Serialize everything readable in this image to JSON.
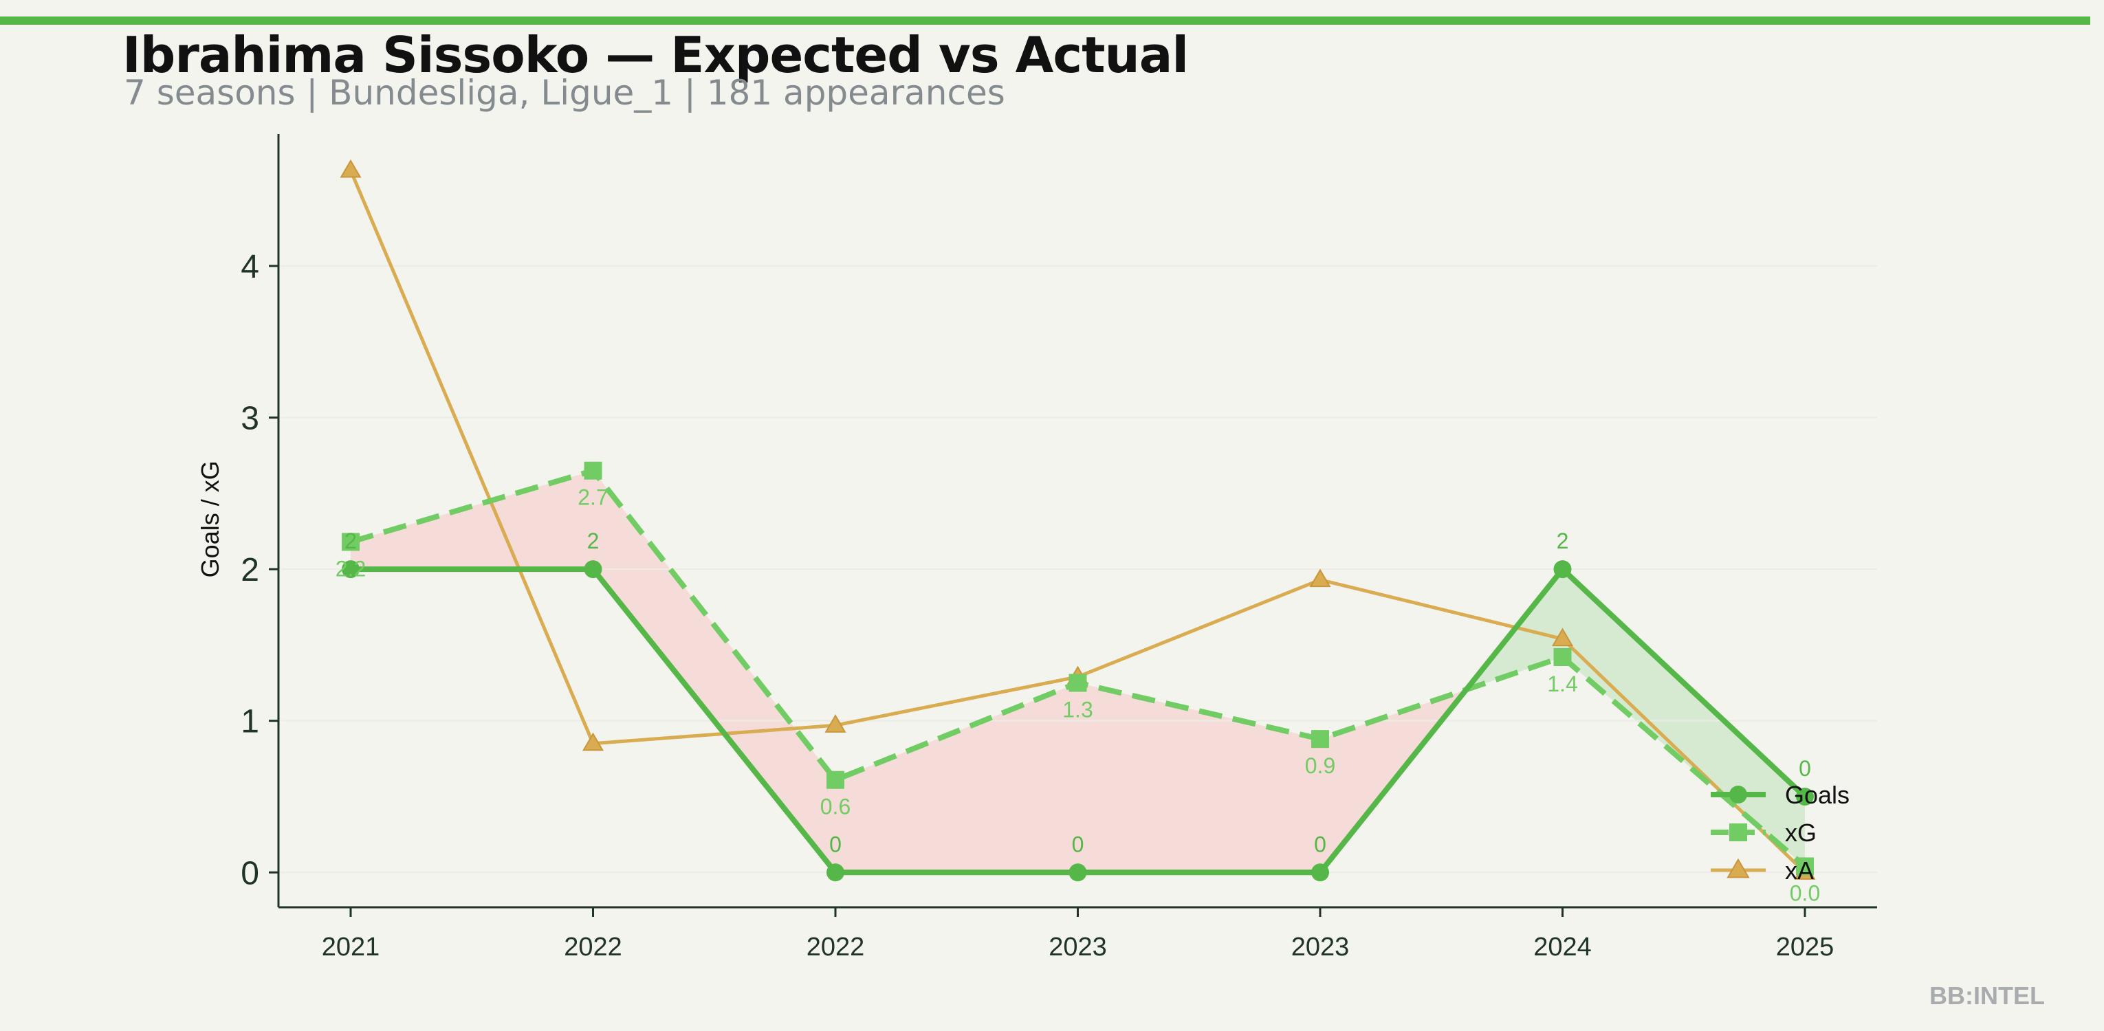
{
  "header": {
    "title": "Ibrahima Sissoko — Expected vs Actual",
    "subtitle": "7 seasons | Bundesliga, Ligue_1 | 181 appearances"
  },
  "watermark": "BB:INTEL",
  "colors": {
    "background": "#f4f4ef",
    "accent": "#55b748",
    "goals": "#55b748",
    "xg": "#72cc64",
    "xa": "#d9ac52",
    "underperform_fill": "#f5d9d5",
    "overperform_fill": "#d3e9cd",
    "axis": "#1f3326"
  },
  "chart_data": {
    "type": "line",
    "title": "Ibrahima Sissoko — Expected vs Actual",
    "subtitle": "7 seasons | Bundesliga, Ligue_1 | 181 appearances",
    "xlabel": "",
    "ylabel": "Goals / xG",
    "categories": [
      "2021",
      "2022",
      "2022",
      "2023",
      "2023",
      "2024",
      "2025"
    ],
    "ylim": [
      -0.23,
      4.87
    ],
    "yticks": [
      0,
      1,
      2,
      3,
      4
    ],
    "grid": false,
    "legend_position": "bottom-right",
    "series": [
      {
        "name": "Goals",
        "key": "goals",
        "marker": "circle",
        "style": "solid",
        "values": [
          2,
          2,
          0,
          0,
          0,
          2,
          0.5
        ],
        "labels": [
          "2",
          "2",
          "0",
          "0",
          "0",
          "2",
          "0"
        ]
      },
      {
        "name": "xG",
        "key": "xg",
        "marker": "square",
        "style": "dashed",
        "values": [
          2.18,
          2.65,
          0.61,
          1.25,
          0.88,
          1.42,
          0.04
        ],
        "labels": [
          "2.2",
          "2.7",
          "0.6",
          "1.3",
          "0.9",
          "1.4",
          "0.0"
        ]
      },
      {
        "name": "xA",
        "key": "xa",
        "marker": "triangle",
        "style": "solid",
        "values": [
          4.63,
          0.85,
          0.97,
          1.29,
          1.93,
          1.54,
          0.0
        ],
        "labels": []
      }
    ]
  }
}
